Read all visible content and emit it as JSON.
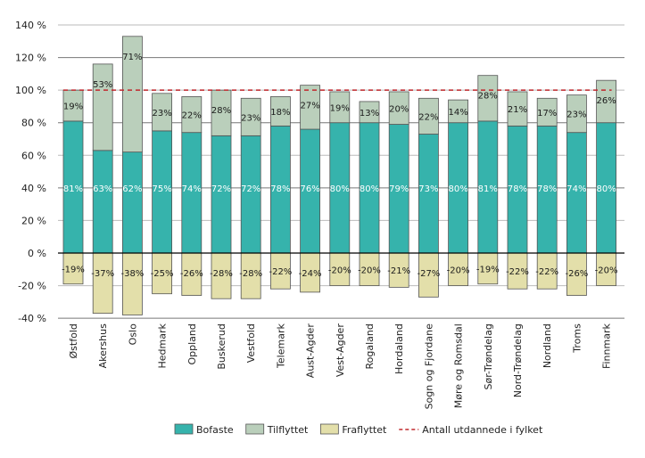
{
  "chart_data": {
    "type": "bar",
    "stacked": true,
    "title": "",
    "xlabel": "",
    "ylabel": "",
    "ylim": [
      -40,
      140
    ],
    "yticks": [
      -40,
      -20,
      0,
      20,
      40,
      60,
      80,
      100,
      120,
      140
    ],
    "ytick_labels": [
      "-40 %",
      "-20 %",
      "0 %",
      "20 %",
      "40 %",
      "60 %",
      "80 %",
      "100 %",
      "120 %",
      "140 %"
    ],
    "grid": true,
    "legend_position": "bottom",
    "categories": [
      "Østfold",
      "Akershus",
      "Oslo",
      "Hedmark",
      "Oppland",
      "Buskerud",
      "Vestfold",
      "Telemark",
      "Aust-Agder",
      "Vest-Agder",
      "Rogaland",
      "Hordaland",
      "Sogn og Fjordane",
      "Møre og Romsdal",
      "Sør-Trøndelag",
      "Nord-Trøndelag",
      "Nordland",
      "Troms",
      "Finnmark"
    ],
    "series": [
      {
        "name": "Bofaste",
        "color": "#36b3ac",
        "label_color": "#ffffff",
        "values": [
          81,
          63,
          62,
          75,
          74,
          72,
          72,
          78,
          76,
          80,
          80,
          79,
          73,
          80,
          81,
          78,
          78,
          74,
          80
        ]
      },
      {
        "name": "Tilflyttet",
        "color": "#bacfbb",
        "label_color": "#1a1a1a",
        "values": [
          19,
          53,
          71,
          23,
          22,
          28,
          23,
          18,
          27,
          19,
          13,
          20,
          22,
          14,
          28,
          21,
          17,
          23,
          26
        ]
      },
      {
        "name": "Fraflyttet",
        "color": "#e3dfaa",
        "label_color": "#1a1a1a",
        "values": [
          -19,
          -37,
          -38,
          -25,
          -26,
          -28,
          -28,
          -22,
          -24,
          -20,
          -20,
          -21,
          -27,
          -20,
          -19,
          -22,
          -22,
          -26,
          -20
        ]
      }
    ],
    "reference_line": {
      "name": "Antall utdannede i fylket",
      "value": 100,
      "color": "#c0282d",
      "style": "dashed"
    }
  }
}
